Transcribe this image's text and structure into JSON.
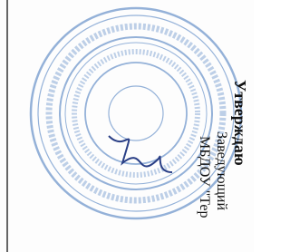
{
  "approval": {
    "heading": "Утверждаю",
    "position": "Заведующий",
    "organization": "МБДОУ \"Тер"
  }
}
